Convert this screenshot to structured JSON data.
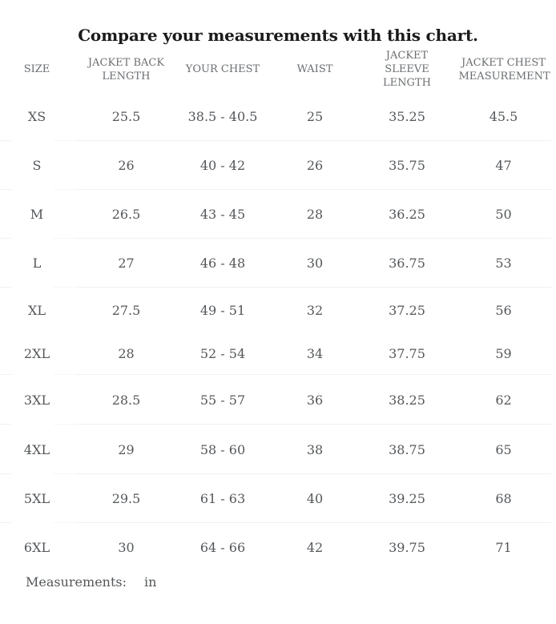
{
  "chart_data": {
    "type": "table",
    "title": "Compare your measurements with this chart.",
    "columns": [
      "SIZE",
      "JACKET BACK LENGTH",
      "YOUR CHEST",
      "WAIST",
      "JACKET SLEEVE LENGTH",
      "JACKET CHEST MEASUREMENT"
    ],
    "rows": [
      [
        "XS",
        "25.5",
        "38.5 - 40.5",
        "25",
        "35.25",
        "45.5"
      ],
      [
        "S",
        "26",
        "40 - 42",
        "26",
        "35.75",
        "47"
      ],
      [
        "M",
        "26.5",
        "43 - 45",
        "28",
        "36.25",
        "50"
      ],
      [
        "L",
        "27",
        "46 - 48",
        "30",
        "36.75",
        "53"
      ],
      [
        "XL",
        "27.5",
        "49 - 51",
        "32",
        "37.25",
        "56"
      ],
      [
        "2XL",
        "28",
        "52 - 54",
        "34",
        "37.75",
        "59"
      ],
      [
        "3XL",
        "28.5",
        "55 - 57",
        "36",
        "38.25",
        "62"
      ],
      [
        "4XL",
        "29",
        "58 - 60",
        "38",
        "38.75",
        "65"
      ],
      [
        "5XL",
        "29.5",
        "61 - 63",
        "40",
        "39.25",
        "68"
      ],
      [
        "6XL",
        "30",
        "64 - 66",
        "42",
        "39.75",
        "71"
      ]
    ],
    "footer": {
      "label": "Measurements:",
      "unit": "in"
    },
    "layout_hints": {
      "header_position": "top",
      "grid": "horizontal-dividers-only",
      "units_position": "bottom-left"
    }
  },
  "colors": {
    "background": "#ffffff",
    "title_text": "#1b1b1b",
    "header_text": "#6b6e71",
    "body_text": "#54575a",
    "divider": "#f0f0f1"
  }
}
